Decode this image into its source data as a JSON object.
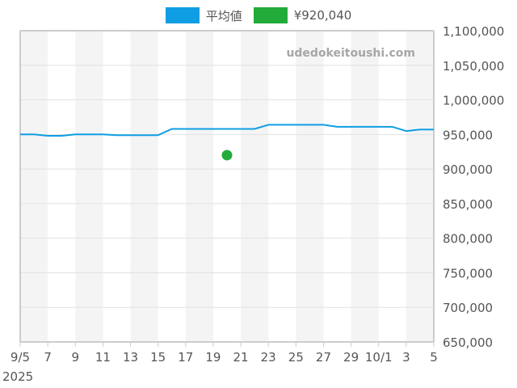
{
  "legend": [
    {
      "label": "平均値",
      "color": "#0f9ee3"
    },
    {
      "label": "¥920,040",
      "color": "#22ab3a"
    }
  ],
  "watermark": "udedokeitoushi.com",
  "chart_data": {
    "type": "line",
    "title": "",
    "xlabel": "",
    "ylabel": "",
    "x_start_year": "2025",
    "x_tick_labels": [
      "9/5",
      "7",
      "9",
      "11",
      "13",
      "15",
      "17",
      "19",
      "21",
      "23",
      "25",
      "27",
      "29",
      "10/1",
      "3",
      "5"
    ],
    "y_tick_labels": [
      "1,100,000",
      "1,050,000",
      "1,000,000",
      "950,000",
      "900,000",
      "850,000",
      "800,000",
      "750,000",
      "700,000",
      "650,000"
    ],
    "ylim": [
      650000,
      1100000
    ],
    "grid": true,
    "alternating_day_bands": true,
    "legend_position": "top",
    "series": [
      {
        "name": "平均値",
        "type": "line",
        "color": "#0f9ee3",
        "x": [
          "9/5",
          "9/6",
          "9/7",
          "9/8",
          "9/9",
          "9/10",
          "9/11",
          "9/12",
          "9/13",
          "9/14",
          "9/15",
          "9/16",
          "9/17",
          "9/18",
          "9/19",
          "9/20",
          "9/21",
          "9/22",
          "9/23",
          "9/24",
          "9/25",
          "9/26",
          "9/27",
          "9/28",
          "9/29",
          "9/30",
          "10/1",
          "10/2",
          "10/3",
          "10/4",
          "10/5"
        ],
        "values": [
          950000,
          950000,
          948000,
          948000,
          950000,
          950000,
          950000,
          949000,
          949000,
          949000,
          949000,
          958000,
          958000,
          958000,
          958000,
          958000,
          958000,
          958000,
          964000,
          964000,
          964000,
          964000,
          964000,
          961000,
          961000,
          961000,
          961000,
          961000,
          955000,
          957000,
          957000
        ]
      },
      {
        "name": "¥920,040",
        "type": "scatter",
        "color": "#22ab3a",
        "x": [
          "9/20"
        ],
        "values": [
          920040
        ]
      }
    ]
  }
}
